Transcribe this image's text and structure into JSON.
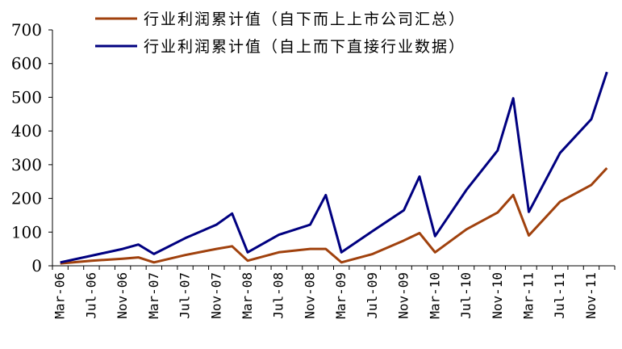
{
  "chart_data": {
    "type": "line",
    "title": "",
    "xlabel": "",
    "ylabel": "",
    "ylim": [
      0,
      700
    ],
    "yticks": [
      0,
      100,
      200,
      300,
      400,
      500,
      600,
      700
    ],
    "ytick_labels": [
      "0",
      "100",
      "200",
      "300",
      "400",
      "500",
      "600",
      "700"
    ],
    "x": [
      "Mar-06",
      "May-06",
      "Jul-06",
      "Sep-06",
      "Nov-06",
      "Jan-07",
      "Mar-07",
      "May-07",
      "Jul-07",
      "Sep-07",
      "Nov-07",
      "Jan-08",
      "Mar-08",
      "May-08",
      "Jul-08",
      "Sep-08",
      "Nov-08",
      "Jan-09",
      "Mar-09",
      "May-09",
      "Jul-09",
      "Sep-09",
      "Nov-09",
      "Jan-10",
      "Mar-10",
      "May-10",
      "Jul-10",
      "Sep-10",
      "Nov-10",
      "Jan-11",
      "Mar-11",
      "May-11",
      "Jul-11",
      "Sep-11",
      "Nov-11",
      "Jan-12"
    ],
    "x_tick_labels": [
      "Mar-06",
      "Jul-06",
      "Nov-06",
      "Mar-07",
      "Jul-07",
      "Nov-07",
      "Mar-08",
      "Jul-08",
      "Nov-08",
      "Mar-09",
      "Jul-09",
      "Nov-09",
      "Mar-10",
      "Jul-10",
      "Nov-10",
      "Mar-11",
      "Jul-11",
      "Nov-11"
    ],
    "legend_position": "top",
    "grid": false,
    "series": [
      {
        "name": "行业利润累计值（自下而上上市公司汇总）",
        "color": "#A0410D",
        "points": [
          {
            "x": "Mar-06",
            "y": 7
          },
          {
            "x": "Jul-06",
            "y": 15
          },
          {
            "x": "Nov-06",
            "y": 21
          },
          {
            "x": "Jan-07",
            "y": 25
          },
          {
            "x": "Mar-07",
            "y": 10
          },
          {
            "x": "Jul-07",
            "y": 32
          },
          {
            "x": "Nov-07",
            "y": 50
          },
          {
            "x": "Jan-08",
            "y": 58
          },
          {
            "x": "Mar-08",
            "y": 15
          },
          {
            "x": "Jul-08",
            "y": 40
          },
          {
            "x": "Nov-08",
            "y": 50
          },
          {
            "x": "Jan-09",
            "y": 50
          },
          {
            "x": "Mar-09",
            "y": 10
          },
          {
            "x": "Jul-09",
            "y": 35
          },
          {
            "x": "Nov-09",
            "y": 75
          },
          {
            "x": "Jan-10",
            "y": 97
          },
          {
            "x": "Mar-10",
            "y": 40
          },
          {
            "x": "Jul-10",
            "y": 108
          },
          {
            "x": "Nov-10",
            "y": 158
          },
          {
            "x": "Jan-11",
            "y": 210
          },
          {
            "x": "Mar-11",
            "y": 90
          },
          {
            "x": "Jul-11",
            "y": 190
          },
          {
            "x": "Nov-11",
            "y": 240
          },
          {
            "x": "Jan-12",
            "y": 290
          }
        ]
      },
      {
        "name": "行业利润累计值（自上而下直接行业数据）",
        "color": "#000080",
        "points": [
          {
            "x": "Mar-06",
            "y": 10
          },
          {
            "x": "Jul-06",
            "y": 30
          },
          {
            "x": "Nov-06",
            "y": 50
          },
          {
            "x": "Jan-07",
            "y": 63
          },
          {
            "x": "Mar-07",
            "y": 35
          },
          {
            "x": "Jul-07",
            "y": 82
          },
          {
            "x": "Nov-07",
            "y": 122
          },
          {
            "x": "Jan-08",
            "y": 155
          },
          {
            "x": "Mar-08",
            "y": 40
          },
          {
            "x": "Jul-08",
            "y": 92
          },
          {
            "x": "Nov-08",
            "y": 122
          },
          {
            "x": "Jan-09",
            "y": 210
          },
          {
            "x": "Mar-09",
            "y": 40
          },
          {
            "x": "Jul-09",
            "y": 103
          },
          {
            "x": "Nov-09",
            "y": 165
          },
          {
            "x": "Jan-10",
            "y": 265
          },
          {
            "x": "Mar-10",
            "y": 88
          },
          {
            "x": "Jul-10",
            "y": 225
          },
          {
            "x": "Nov-10",
            "y": 342
          },
          {
            "x": "Jan-11",
            "y": 497
          },
          {
            "x": "Mar-11",
            "y": 160
          },
          {
            "x": "Jul-11",
            "y": 335
          },
          {
            "x": "Nov-11",
            "y": 435
          },
          {
            "x": "Jan-12",
            "y": 575
          }
        ]
      }
    ]
  }
}
